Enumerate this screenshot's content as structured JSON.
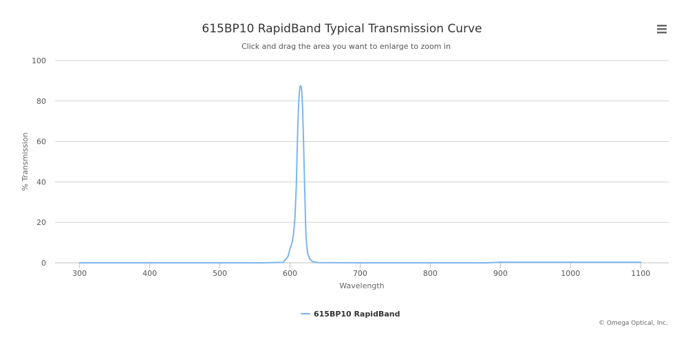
{
  "chart_data": {
    "type": "line",
    "title": "615BP10 RapidBand Typical Transmission Curve",
    "subtitle": "Click and drag the area you want to enlarge to zoom in",
    "xlabel": "Wavelength",
    "ylabel": "% Transmission",
    "xlim": [
      265,
      1140
    ],
    "ylim": [
      0,
      100
    ],
    "x_ticks": [
      300,
      400,
      500,
      600,
      700,
      800,
      900,
      1000,
      1100
    ],
    "y_ticks": [
      0,
      20,
      40,
      60,
      80,
      100
    ],
    "grid": true,
    "legend": "bottom-center",
    "series": [
      {
        "name": "615BP10 RapidBand",
        "color": "#7cb5ec",
        "x": [
          300,
          400,
          500,
          560,
          590,
          597,
          600,
          603,
          605,
          607,
          609,
          610,
          611,
          612,
          613,
          614,
          615,
          616,
          617,
          618,
          619,
          620,
          621,
          622,
          623,
          625,
          628,
          632,
          640,
          700,
          800,
          880,
          900,
          950,
          1000,
          1050,
          1100
        ],
        "y": [
          0,
          0,
          0,
          0,
          0.2,
          3,
          7,
          10,
          14,
          22,
          38,
          52,
          66,
          76,
          83,
          86.5,
          87.5,
          87,
          84,
          76,
          64,
          50,
          36,
          22,
          12,
          5,
          2,
          0.6,
          0.1,
          0,
          0,
          0,
          0.3,
          0.3,
          0.3,
          0.3,
          0.3
        ]
      }
    ]
  },
  "credits": "© Omega Optical, Inc.",
  "menu": {
    "icon": "hamburger-menu-icon"
  }
}
